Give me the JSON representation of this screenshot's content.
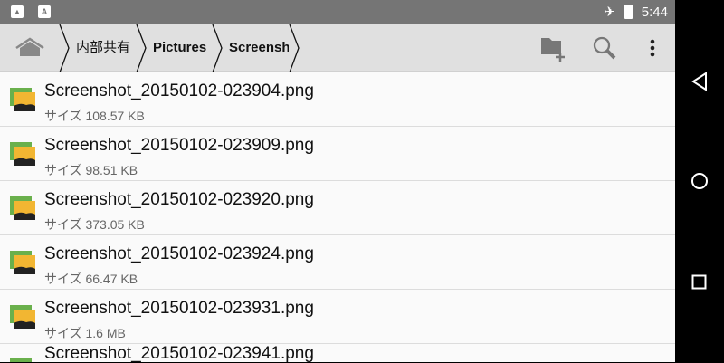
{
  "status_bar": {
    "time": "5:44",
    "left_icons": [
      "image-icon",
      "a-icon"
    ],
    "right_icons": [
      "airplane-icon",
      "battery-icon"
    ],
    "a_letter": "A"
  },
  "breadcrumb": [
    "内部共有",
    "Pictures",
    "Screensh"
  ],
  "toolbar": {
    "icons": [
      "new-folder-icon",
      "search-icon",
      "more-vert-icon"
    ]
  },
  "files": [
    {
      "name": "Screenshot_20150102-023904.png",
      "size": "サイズ 108.57 KB"
    },
    {
      "name": "Screenshot_20150102-023909.png",
      "size": "サイズ 98.51 KB"
    },
    {
      "name": "Screenshot_20150102-023920.png",
      "size": "サイズ 373.05 KB"
    },
    {
      "name": "Screenshot_20150102-023924.png",
      "size": "サイズ 66.47 KB"
    },
    {
      "name": "Screenshot_20150102-023931.png",
      "size": "サイズ 1.6 MB"
    },
    {
      "name": "Screenshot_20150102-023941.png",
      "size": ""
    }
  ],
  "nav": [
    "back-icon",
    "home-icon",
    "recents-icon"
  ]
}
